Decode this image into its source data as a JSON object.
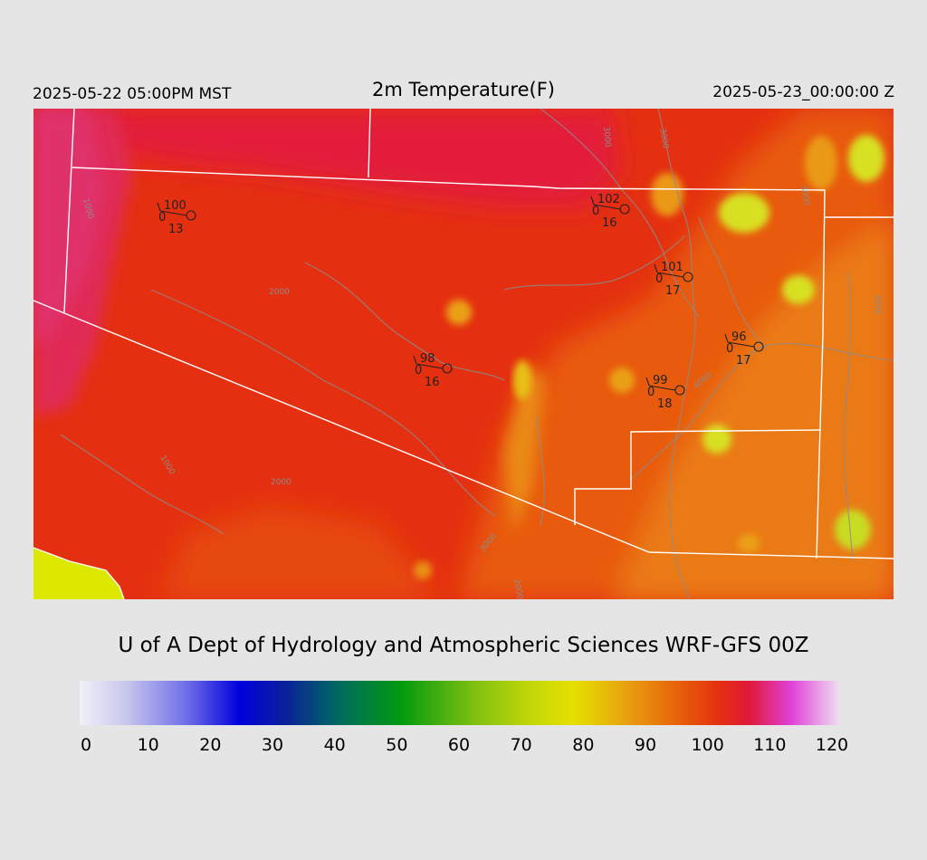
{
  "header": {
    "valid_time_local": "2025-05-22 05:00PM MST",
    "title": "2m Temperature(F)",
    "valid_time_utc": "2025-05-23_00:00:00 Z"
  },
  "credit": "U of A Dept of Hydrology and Atmospheric Sciences WRF-GFS 00Z",
  "colorbar": {
    "tick_labels": [
      "0",
      "10",
      "20",
      "30",
      "40",
      "50",
      "60",
      "70",
      "80",
      "90",
      "100",
      "110",
      "120"
    ],
    "colors": {
      "cold": "#0000dd",
      "cool": "#009910",
      "mild": "#e6e000",
      "warm": "#e8680a",
      "hot": "#e01838",
      "very_hot": "#e040d8"
    }
  },
  "map": {
    "contour_labels": [
      "1000",
      "1000",
      "2000",
      "2000",
      "3000",
      "3000",
      "3000",
      "3000",
      "4000",
      "3000",
      "2000"
    ],
    "stations": [
      {
        "temp": "100",
        "left": "0",
        "bottom": "13"
      },
      {
        "temp": "102",
        "left": "0",
        "bottom": "16"
      },
      {
        "temp": "101",
        "left": "0",
        "bottom": "17"
      },
      {
        "temp": "96",
        "left": "0",
        "bottom": "17"
      },
      {
        "temp": "98",
        "left": "0",
        "bottom": "16"
      },
      {
        "temp": "99",
        "left": "0",
        "bottom": "18"
      }
    ]
  }
}
